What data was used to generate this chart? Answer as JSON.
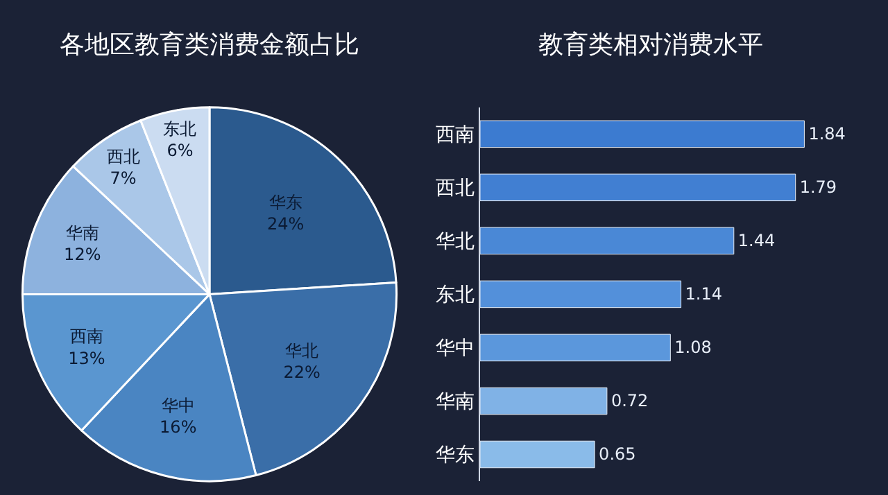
{
  "chart_data": [
    {
      "type": "pie",
      "title": "各地区教育类消费金额占比",
      "categories": [
        "华东",
        "华北",
        "华中",
        "西南",
        "华南",
        "西北",
        "东北"
      ],
      "values": [
        24,
        22,
        16,
        13,
        12,
        7,
        6
      ],
      "value_labels": [
        "24%",
        "22%",
        "16%",
        "13%",
        "12%",
        "7%",
        "6%"
      ],
      "colors": [
        "#2b5a8e",
        "#3a6ea8",
        "#4a85c2",
        "#5a96d0",
        "#8db2de",
        "#aac7e8",
        "#cbdcf1"
      ]
    },
    {
      "type": "bar",
      "title": "教育类相对消费水平",
      "orientation": "horizontal",
      "categories": [
        "西南",
        "西北",
        "华北",
        "东北",
        "华中",
        "华南",
        "华东"
      ],
      "values": [
        1.84,
        1.79,
        1.44,
        1.14,
        1.08,
        0.72,
        0.65
      ],
      "colors": [
        "#3c7bd0",
        "#417fd2",
        "#4a88d6",
        "#5390da",
        "#5b97dc",
        "#80b2e6",
        "#8abbe9"
      ],
      "data_labels": true,
      "tick_labels": "y"
    }
  ]
}
